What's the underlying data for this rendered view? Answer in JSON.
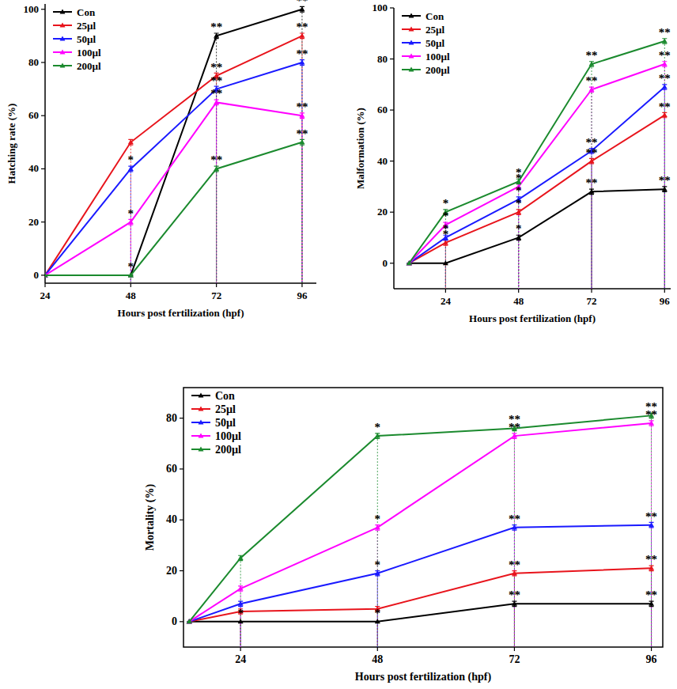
{
  "chart_data": [
    {
      "type": "line",
      "x_label": "Hours post fertilization (hpf)",
      "y_label": "Hatching rate (%)",
      "x": [
        24,
        48,
        72,
        96
      ],
      "xlim": [
        24,
        100
      ],
      "xticks": [
        24,
        48,
        72,
        96
      ],
      "ylim": [
        -3,
        102
      ],
      "yticks": [
        0,
        20,
        40,
        60,
        80,
        100
      ],
      "legend": "upper left",
      "marker": "triangle",
      "series": [
        {
          "name": "Con",
          "color": "#000000",
          "values": [
            0,
            0,
            90,
            100
          ],
          "errors": [
            0,
            0,
            1,
            1
          ],
          "significance": [
            null,
            "*",
            "**",
            "**"
          ]
        },
        {
          "name": "25µl",
          "color": "#e8141c",
          "values": [
            0,
            50,
            75,
            90
          ],
          "errors": [
            0,
            1,
            1,
            1
          ],
          "significance": [
            null,
            null,
            "**",
            "**"
          ]
        },
        {
          "name": "50µl",
          "color": "#1a1aff",
          "values": [
            0,
            40,
            70,
            80
          ],
          "errors": [
            0,
            1,
            1,
            1
          ],
          "significance": [
            null,
            "*",
            "**",
            "**"
          ]
        },
        {
          "name": "100µl",
          "color": "#ff00ff",
          "values": [
            0,
            20,
            65,
            60
          ],
          "errors": [
            0,
            1,
            1,
            1
          ],
          "significance": [
            null,
            "*",
            "**",
            "**"
          ]
        },
        {
          "name": "200µl",
          "color": "#1b8a2e",
          "values": [
            0,
            0,
            40,
            50
          ],
          "errors": [
            0,
            0,
            1,
            1
          ],
          "significance": [
            null,
            null,
            "**",
            "**"
          ]
        }
      ]
    },
    {
      "type": "line",
      "x_label": "Hours post fertilization (hpf)",
      "y_label": "Malformation (%)",
      "x": [
        12,
        24,
        48,
        72,
        96
      ],
      "xlim": [
        7,
        98
      ],
      "xticks": [
        24,
        48,
        72,
        96
      ],
      "ylim": [
        -10,
        100
      ],
      "yticks": [
        0,
        20,
        40,
        60,
        80,
        100
      ],
      "legend": "upper left",
      "marker": "triangle",
      "series": [
        {
          "name": "Con",
          "color": "#000000",
          "values": [
            0,
            0,
            10,
            28,
            29
          ],
          "errors": [
            0,
            0,
            1,
            1,
            1
          ],
          "significance": [
            null,
            null,
            "*",
            "**",
            "**"
          ]
        },
        {
          "name": "25µl",
          "color": "#e8141c",
          "values": [
            0,
            8,
            20,
            40,
            58
          ],
          "errors": [
            0,
            1,
            1,
            1,
            1
          ],
          "significance": [
            null,
            "*",
            "*",
            "**",
            "**"
          ]
        },
        {
          "name": "50µl",
          "color": "#1a1aff",
          "values": [
            0,
            10,
            25,
            44,
            69
          ],
          "errors": [
            0,
            1,
            1,
            1,
            1
          ],
          "significance": [
            null,
            "*",
            "*",
            "**",
            "**"
          ]
        },
        {
          "name": "100µl",
          "color": "#ff00ff",
          "values": [
            0,
            15,
            30,
            68,
            78
          ],
          "errors": [
            0,
            1,
            1,
            1,
            1
          ],
          "significance": [
            null,
            "*",
            "*",
            "**",
            "**"
          ]
        },
        {
          "name": "200µl",
          "color": "#1b8a2e",
          "values": [
            0,
            20,
            32,
            78,
            87
          ],
          "errors": [
            0,
            1,
            1,
            1,
            1
          ],
          "significance": [
            null,
            "*",
            "*",
            "**",
            "**"
          ]
        }
      ]
    },
    {
      "type": "line",
      "x_label": "Hours post fertilization (hpf)",
      "y_label": "Mortality (%)",
      "x": [
        15,
        24,
        48,
        72,
        96
      ],
      "xlim": [
        14,
        98
      ],
      "xticks": [
        24,
        48,
        72,
        96
      ],
      "ylim": [
        -10,
        92
      ],
      "yticks": [
        0,
        20,
        40,
        60,
        80
      ],
      "legend": "upper left",
      "marker": "triangle",
      "series": [
        {
          "name": "Con",
          "color": "#000000",
          "values": [
            0,
            0,
            0,
            7,
            7
          ],
          "errors": [
            0,
            0,
            0,
            1,
            1
          ],
          "significance": [
            null,
            "*",
            "*",
            "**",
            "**"
          ]
        },
        {
          "name": "25µl",
          "color": "#e8141c",
          "values": [
            0,
            4,
            5,
            19,
            21
          ],
          "errors": [
            0,
            1,
            1,
            1,
            1
          ],
          "significance": [
            null,
            null,
            null,
            "**",
            "**"
          ]
        },
        {
          "name": "50µl",
          "color": "#1a1aff",
          "values": [
            0,
            7,
            19,
            37,
            38
          ],
          "errors": [
            0,
            1,
            1,
            1,
            1
          ],
          "significance": [
            null,
            null,
            "*",
            "**",
            "**"
          ]
        },
        {
          "name": "100µl",
          "color": "#ff00ff",
          "values": [
            0,
            13,
            37,
            73,
            78
          ],
          "errors": [
            0,
            1,
            1,
            1,
            1
          ],
          "significance": [
            null,
            null,
            "*",
            "**",
            "**"
          ]
        },
        {
          "name": "200µl",
          "color": "#1b8a2e",
          "values": [
            0,
            25,
            73,
            76,
            81
          ],
          "errors": [
            0,
            1,
            1,
            1,
            1
          ],
          "significance": [
            null,
            null,
            "*",
            "**",
            "**"
          ]
        }
      ]
    }
  ]
}
